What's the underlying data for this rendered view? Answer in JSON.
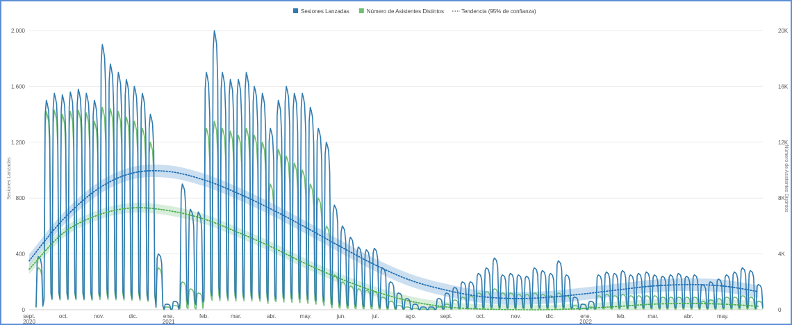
{
  "chart_data": {
    "type": "line",
    "legend": {
      "position": "top-center",
      "items": [
        {
          "label": "Sesiones Lanzadas",
          "marker": "square",
          "color": "#2f7bb0"
        },
        {
          "label": "Número de Asistentes Distintos",
          "marker": "square",
          "color": "#6fbf73"
        },
        {
          "label": "Tendencia (95% de confianza)",
          "marker": "dotted-line",
          "color": "#777777"
        }
      ]
    },
    "y_left": {
      "label": "Sesiones Lanzadas",
      "range": [
        0,
        2000
      ],
      "ticks": [
        "0",
        "400",
        "800",
        "1.200",
        "1.600",
        "2.000"
      ],
      "tick_values": [
        0,
        400,
        800,
        1200,
        1600,
        2000
      ]
    },
    "y_right": {
      "label": "Número de Asistentes Distintos",
      "range": [
        0,
        20000
      ],
      "ticks": [
        "0",
        "4K",
        "8K",
        "12K",
        "16K",
        "20K"
      ],
      "tick_values": [
        0,
        4000,
        8000,
        12000,
        16000,
        20000
      ]
    },
    "x_axis": {
      "range": [
        "2020-09-01",
        "2022-06-05"
      ],
      "ticks": [
        {
          "date": "2020-09-01",
          "label": "sept.",
          "year": "2020"
        },
        {
          "date": "2020-10-01",
          "label": "oct."
        },
        {
          "date": "2020-11-01",
          "label": "nov."
        },
        {
          "date": "2020-12-01",
          "label": "dic."
        },
        {
          "date": "2021-01-01",
          "label": "ene.",
          "year": "2021"
        },
        {
          "date": "2021-02-01",
          "label": "feb."
        },
        {
          "date": "2021-03-01",
          "label": "mar."
        },
        {
          "date": "2021-04-01",
          "label": "abr."
        },
        {
          "date": "2021-05-01",
          "label": "may."
        },
        {
          "date": "2021-06-01",
          "label": "jun."
        },
        {
          "date": "2021-07-01",
          "label": "jul."
        },
        {
          "date": "2021-08-01",
          "label": "ago."
        },
        {
          "date": "2021-09-01",
          "label": "sept."
        },
        {
          "date": "2021-10-01",
          "label": "oct."
        },
        {
          "date": "2021-11-01",
          "label": "nov."
        },
        {
          "date": "2021-12-01",
          "label": "dic."
        },
        {
          "date": "2022-01-01",
          "label": "ene.",
          "year": "2022"
        },
        {
          "date": "2022-02-01",
          "label": "feb."
        },
        {
          "date": "2022-03-01",
          "label": "mar."
        },
        {
          "date": "2022-04-01",
          "label": "abr."
        },
        {
          "date": "2022-05-01",
          "label": "may."
        }
      ]
    },
    "grid": {
      "horizontal": true,
      "vertical": false
    },
    "colors": {
      "sesiones": "#2f7bb0",
      "asistentes": "#6fbf73",
      "sesiones_band": "#a9c9e6",
      "asistentes_band": "#bfe3c2"
    },
    "series": [
      {
        "name": "Sesiones Lanzadas",
        "axis": "left",
        "weekday_peak": [
          [
            "2020-09-08",
            380
          ],
          [
            "2020-09-15",
            1500
          ],
          [
            "2020-09-22",
            1550
          ],
          [
            "2020-09-29",
            1540
          ],
          [
            "2020-10-06",
            1560
          ],
          [
            "2020-10-13",
            1580
          ],
          [
            "2020-10-20",
            1550
          ],
          [
            "2020-10-27",
            1500
          ],
          [
            "2020-11-03",
            1900
          ],
          [
            "2020-11-10",
            1760
          ],
          [
            "2020-11-17",
            1700
          ],
          [
            "2020-11-24",
            1650
          ],
          [
            "2020-12-01",
            1600
          ],
          [
            "2020-12-08",
            1550
          ],
          [
            "2020-12-15",
            1400
          ],
          [
            "2020-12-22",
            400
          ],
          [
            "2020-12-29",
            40
          ],
          [
            "2021-01-05",
            60
          ],
          [
            "2021-01-12",
            900
          ],
          [
            "2021-01-19",
            720
          ],
          [
            "2021-01-26",
            700
          ],
          [
            "2021-02-02",
            1700
          ],
          [
            "2021-02-09",
            2000
          ],
          [
            "2021-02-16",
            1700
          ],
          [
            "2021-02-23",
            1650
          ],
          [
            "2021-03-02",
            1650
          ],
          [
            "2021-03-09",
            1700
          ],
          [
            "2021-03-16",
            1600
          ],
          [
            "2021-03-23",
            1550
          ],
          [
            "2021-03-30",
            1300
          ],
          [
            "2021-04-06",
            1500
          ],
          [
            "2021-04-13",
            1600
          ],
          [
            "2021-04-20",
            1550
          ],
          [
            "2021-04-27",
            1550
          ],
          [
            "2021-05-04",
            1450
          ],
          [
            "2021-05-11",
            1300
          ],
          [
            "2021-05-18",
            1200
          ],
          [
            "2021-05-25",
            750
          ],
          [
            "2021-06-01",
            600
          ],
          [
            "2021-06-08",
            520
          ],
          [
            "2021-06-15",
            450
          ],
          [
            "2021-06-22",
            430
          ],
          [
            "2021-06-29",
            440
          ],
          [
            "2021-07-06",
            300
          ],
          [
            "2021-07-13",
            200
          ],
          [
            "2021-07-20",
            120
          ],
          [
            "2021-07-27",
            80
          ],
          [
            "2021-08-03",
            40
          ],
          [
            "2021-08-10",
            20
          ],
          [
            "2021-08-17",
            20
          ],
          [
            "2021-08-24",
            80
          ],
          [
            "2021-08-31",
            120
          ],
          [
            "2021-09-07",
            160
          ],
          [
            "2021-09-14",
            200
          ],
          [
            "2021-09-21",
            200
          ],
          [
            "2021-09-28",
            260
          ],
          [
            "2021-10-05",
            300
          ],
          [
            "2021-10-12",
            370
          ],
          [
            "2021-10-19",
            250
          ],
          [
            "2021-10-26",
            260
          ],
          [
            "2021-11-02",
            250
          ],
          [
            "2021-11-09",
            240
          ],
          [
            "2021-11-16",
            300
          ],
          [
            "2021-11-23",
            280
          ],
          [
            "2021-11-30",
            260
          ],
          [
            "2021-12-07",
            350
          ],
          [
            "2021-12-14",
            250
          ],
          [
            "2021-12-21",
            90
          ],
          [
            "2021-12-28",
            40
          ],
          [
            "2022-01-04",
            60
          ],
          [
            "2022-01-11",
            250
          ],
          [
            "2022-01-18",
            270
          ],
          [
            "2022-01-25",
            260
          ],
          [
            "2022-02-01",
            280
          ],
          [
            "2022-02-08",
            250
          ],
          [
            "2022-02-15",
            260
          ],
          [
            "2022-02-22",
            270
          ],
          [
            "2022-03-01",
            250
          ],
          [
            "2022-03-08",
            240
          ],
          [
            "2022-03-15",
            250
          ],
          [
            "2022-03-22",
            260
          ],
          [
            "2022-03-29",
            240
          ],
          [
            "2022-04-05",
            250
          ],
          [
            "2022-04-12",
            180
          ],
          [
            "2022-04-19",
            200
          ],
          [
            "2022-04-26",
            220
          ],
          [
            "2022-05-03",
            250
          ],
          [
            "2022-05-10",
            270
          ],
          [
            "2022-05-17",
            300
          ],
          [
            "2022-05-24",
            280
          ],
          [
            "2022-05-31",
            180
          ]
        ]
      },
      {
        "name": "Número de Asistentes Distintos",
        "axis": "right",
        "weekday_peak": [
          [
            "2020-09-08",
            3000
          ],
          [
            "2020-09-15",
            14200
          ],
          [
            "2020-09-22",
            14300
          ],
          [
            "2020-09-29",
            14000
          ],
          [
            "2020-10-06",
            14200
          ],
          [
            "2020-10-13",
            14300
          ],
          [
            "2020-10-20",
            14100
          ],
          [
            "2020-10-27",
            13500
          ],
          [
            "2020-11-03",
            14500
          ],
          [
            "2020-11-10",
            14400
          ],
          [
            "2020-11-17",
            14200
          ],
          [
            "2020-11-24",
            13800
          ],
          [
            "2020-12-01",
            13500
          ],
          [
            "2020-12-08",
            13000
          ],
          [
            "2020-12-15",
            12000
          ],
          [
            "2020-12-22",
            3000
          ],
          [
            "2020-12-29",
            200
          ],
          [
            "2021-01-05",
            300
          ],
          [
            "2021-01-12",
            2000
          ],
          [
            "2021-01-19",
            1500
          ],
          [
            "2021-01-26",
            1200
          ],
          [
            "2021-02-02",
            13000
          ],
          [
            "2021-02-09",
            13500
          ],
          [
            "2021-02-16",
            13000
          ],
          [
            "2021-02-23",
            12800
          ],
          [
            "2021-03-02",
            12500
          ],
          [
            "2021-03-09",
            13000
          ],
          [
            "2021-03-16",
            12500
          ],
          [
            "2021-03-23",
            12000
          ],
          [
            "2021-03-30",
            9000
          ],
          [
            "2021-04-06",
            11500
          ],
          [
            "2021-04-13",
            11000
          ],
          [
            "2021-04-20",
            10500
          ],
          [
            "2021-04-27",
            10000
          ],
          [
            "2021-05-04",
            9000
          ],
          [
            "2021-05-11",
            8000
          ],
          [
            "2021-05-18",
            6000
          ],
          [
            "2021-05-25",
            2500
          ],
          [
            "2021-06-01",
            2000
          ],
          [
            "2021-06-08",
            1700
          ],
          [
            "2021-06-15",
            1500
          ],
          [
            "2021-06-22",
            1400
          ],
          [
            "2021-06-29",
            1300
          ],
          [
            "2021-07-06",
            900
          ],
          [
            "2021-07-13",
            600
          ],
          [
            "2021-07-20",
            300
          ],
          [
            "2021-07-27",
            200
          ],
          [
            "2021-08-03",
            100
          ],
          [
            "2021-08-10",
            50
          ],
          [
            "2021-08-17",
            50
          ],
          [
            "2021-08-24",
            200
          ],
          [
            "2021-08-31",
            400
          ],
          [
            "2021-09-07",
            700
          ],
          [
            "2021-09-14",
            900
          ],
          [
            "2021-09-21",
            1000
          ],
          [
            "2021-09-28",
            1200
          ],
          [
            "2021-10-05",
            1300
          ],
          [
            "2021-10-12",
            1500
          ],
          [
            "2021-10-19",
            1200
          ],
          [
            "2021-10-26",
            1200
          ],
          [
            "2021-11-02",
            1100
          ],
          [
            "2021-11-09",
            1100
          ],
          [
            "2021-11-16",
            1200
          ],
          [
            "2021-11-23",
            1100
          ],
          [
            "2021-11-30",
            1000
          ],
          [
            "2021-12-07",
            1200
          ],
          [
            "2021-12-14",
            1000
          ],
          [
            "2021-12-21",
            300
          ],
          [
            "2021-12-28",
            100
          ],
          [
            "2022-01-04",
            200
          ],
          [
            "2022-01-11",
            1000
          ],
          [
            "2022-01-18",
            1100
          ],
          [
            "2022-01-25",
            1000
          ],
          [
            "2022-02-01",
            1100
          ],
          [
            "2022-02-08",
            1000
          ],
          [
            "2022-02-15",
            1000
          ],
          [
            "2022-02-22",
            1000
          ],
          [
            "2022-03-01",
            1000
          ],
          [
            "2022-03-08",
            900
          ],
          [
            "2022-03-15",
            900
          ],
          [
            "2022-03-22",
            900
          ],
          [
            "2022-03-29",
            900
          ],
          [
            "2022-04-05",
            900
          ],
          [
            "2022-04-12",
            600
          ],
          [
            "2022-04-19",
            700
          ],
          [
            "2022-04-26",
            800
          ],
          [
            "2022-05-03",
            900
          ],
          [
            "2022-05-10",
            900
          ],
          [
            "2022-05-17",
            1000
          ],
          [
            "2022-05-24",
            900
          ],
          [
            "2022-05-31",
            600
          ]
        ]
      }
    ],
    "trend": [
      {
        "series": "Sesiones Lanzadas",
        "axis": "left",
        "confidence": "95%",
        "points": [
          [
            "2020-09-01",
            350
          ],
          [
            "2020-10-01",
            650
          ],
          [
            "2020-11-01",
            870
          ],
          [
            "2020-12-01",
            980
          ],
          [
            "2021-01-01",
            990
          ],
          [
            "2021-02-01",
            930
          ],
          [
            "2021-03-01",
            840
          ],
          [
            "2021-04-01",
            720
          ],
          [
            "2021-05-01",
            590
          ],
          [
            "2021-06-01",
            450
          ],
          [
            "2021-07-01",
            320
          ],
          [
            "2021-08-01",
            210
          ],
          [
            "2021-09-01",
            140
          ],
          [
            "2021-10-01",
            95
          ],
          [
            "2021-11-01",
            80
          ],
          [
            "2021-12-01",
            90
          ],
          [
            "2022-01-01",
            115
          ],
          [
            "2022-02-01",
            145
          ],
          [
            "2022-03-01",
            170
          ],
          [
            "2022-04-01",
            180
          ],
          [
            "2022-05-01",
            170
          ],
          [
            "2022-06-01",
            130
          ]
        ],
        "band_halfwidth": 45
      },
      {
        "series": "Número de Asistentes Distintos",
        "axis": "right",
        "confidence": "95%",
        "points": [
          [
            "2020-09-01",
            2900
          ],
          [
            "2020-10-01",
            5500
          ],
          [
            "2020-11-01",
            6800
          ],
          [
            "2020-12-01",
            7300
          ],
          [
            "2021-01-01",
            7100
          ],
          [
            "2021-02-01",
            6500
          ],
          [
            "2021-03-01",
            5600
          ],
          [
            "2021-04-01",
            4500
          ],
          [
            "2021-05-01",
            3300
          ],
          [
            "2021-06-01",
            2200
          ],
          [
            "2021-07-01",
            1300
          ],
          [
            "2021-08-01",
            600
          ],
          [
            "2021-09-01",
            200
          ],
          [
            "2021-10-01",
            50
          ],
          [
            "2021-11-01",
            0
          ],
          [
            "2021-12-01",
            0
          ],
          [
            "2022-01-01",
            100
          ],
          [
            "2022-02-01",
            250
          ],
          [
            "2022-03-01",
            400
          ],
          [
            "2022-04-01",
            450
          ],
          [
            "2022-05-01",
            400
          ],
          [
            "2022-06-01",
            250
          ]
        ],
        "band_halfwidth": 350
      }
    ]
  }
}
